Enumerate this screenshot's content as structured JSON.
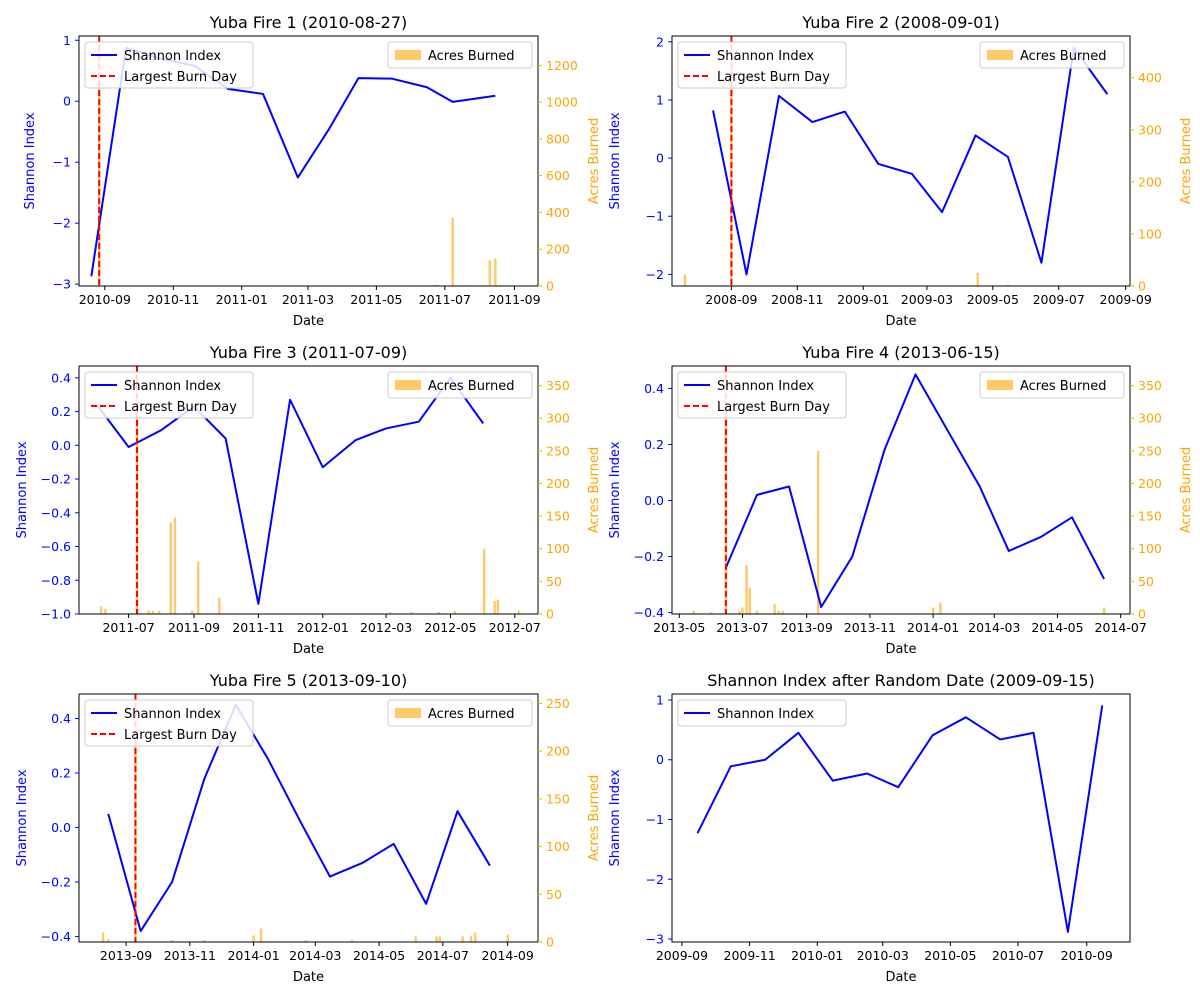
{
  "colors": {
    "shannon": "#0000ff",
    "acres": "#ffa500",
    "burn_day": "#ff0000",
    "axis": "#000000"
  },
  "chart_data": [
    {
      "type": "line+bar",
      "title": "Yuba Fire 1 (2010-08-27)",
      "xlabel": "Date",
      "ylabel": "Shannon Index",
      "y2label": "Acres Burned",
      "xlim": [
        "2010-08-09",
        "2011-09-22"
      ],
      "xticks": [
        "2010-09-01",
        "2010-11-01",
        "2011-01-01",
        "2011-03-01",
        "2011-05-01",
        "2011-07-01",
        "2011-09-01"
      ],
      "xtick_labels": [
        "2010-09",
        "2010-11",
        "2011-01",
        "2011-03",
        "2011-05",
        "2011-07",
        "2011-09"
      ],
      "ylim": [
        -3.03,
        1.07
      ],
      "yticks": [
        -3,
        -2,
        -1,
        0,
        1
      ],
      "y2lim": [
        0,
        1360
      ],
      "y2ticks": [
        0,
        200,
        400,
        600,
        800,
        1000,
        1200
      ],
      "legend": {
        "line_label": "Shannon Index",
        "burn_label": "Largest Burn Day",
        "bar_label": "Acres Burned",
        "line_position": "upper-left",
        "bar_position": "upper-right"
      },
      "burn_day": "2010-08-27",
      "shannon": {
        "x": [
          "2010-08-20",
          "2010-09-20",
          "2010-10-20",
          "2010-11-20",
          "2010-12-20",
          "2011-01-20",
          "2011-02-20",
          "2011-03-20",
          "2011-04-15",
          "2011-05-15",
          "2011-06-15",
          "2011-07-08",
          "2011-08-15"
        ],
        "y": [
          -2.87,
          0.88,
          0.7,
          0.58,
          0.2,
          0.12,
          -1.25,
          -0.45,
          0.38,
          0.37,
          0.23,
          -0.01,
          0.09
        ]
      },
      "acres": {
        "x": [
          "2010-08-27",
          "2011-06-22",
          "2011-06-25",
          "2011-07-08",
          "2011-07-20",
          "2011-08-10",
          "2011-08-15",
          "2011-08-20"
        ],
        "y": [
          1300,
          8,
          6,
          370,
          5,
          140,
          150,
          5
        ]
      }
    },
    {
      "type": "line+bar",
      "title": "Yuba Fire 2 (2008-09-01)",
      "xlabel": "Date",
      "ylabel": "Shannon Index",
      "y2label": "Acres Burned",
      "xlim": [
        "2008-07-08",
        "2009-09-05"
      ],
      "xticks": [
        "2008-09-01",
        "2008-11-01",
        "2009-01-01",
        "2009-03-01",
        "2009-05-01",
        "2009-07-01",
        "2009-09-01"
      ],
      "xtick_labels": [
        "2008-09",
        "2008-11",
        "2009-01",
        "2009-03",
        "2009-05",
        "2009-07",
        "2009-09"
      ],
      "ylim": [
        -2.2,
        2.1
      ],
      "yticks": [
        -2,
        -1,
        0,
        1,
        2
      ],
      "y2lim": [
        0,
        480
      ],
      "y2ticks": [
        0,
        100,
        200,
        300,
        400
      ],
      "legend": {
        "line_label": "Shannon Index",
        "burn_label": "Largest Burn Day",
        "bar_label": "Acres Burned",
        "line_position": "upper-left",
        "bar_position": "upper-right"
      },
      "burn_day": "2008-09-01",
      "shannon": {
        "x": [
          "2008-08-15",
          "2008-09-15",
          "2008-10-15",
          "2008-11-15",
          "2008-12-15",
          "2009-01-15",
          "2009-02-15",
          "2009-03-15",
          "2009-04-15",
          "2009-05-15",
          "2009-06-15",
          "2009-07-15",
          "2009-08-15"
        ],
        "y": [
          0.82,
          -2.0,
          1.07,
          0.62,
          0.8,
          -0.1,
          -0.27,
          -0.93,
          0.39,
          0.02,
          -1.8,
          1.9,
          1.1
        ]
      },
      "acres": {
        "x": [
          "2008-07-20",
          "2008-09-01",
          "2008-11-01",
          "2009-04-17",
          "2009-05-15"
        ],
        "y": [
          22,
          460,
          2,
          25,
          3
        ]
      }
    },
    {
      "type": "line+bar",
      "title": "Yuba Fire 3 (2011-07-09)",
      "xlabel": "Date",
      "ylabel": "Shannon Index",
      "y2label": "Acres Burned",
      "xlim": [
        "2011-05-15",
        "2012-07-23"
      ],
      "xticks": [
        "2011-07-01",
        "2011-09-01",
        "2011-11-01",
        "2012-01-01",
        "2012-03-01",
        "2012-05-01",
        "2012-07-01"
      ],
      "xtick_labels": [
        "2011-07",
        "2011-09",
        "2011-11",
        "2012-01",
        "2012-03",
        "2012-05",
        "2012-07"
      ],
      "ylim": [
        -1.0,
        0.47
      ],
      "yticks": [
        -1.0,
        -0.8,
        -0.6,
        -0.4,
        -0.2,
        0.0,
        0.2,
        0.4
      ],
      "yticklabels": [
        "−1.0",
        "−0.8",
        "−0.6",
        "−0.4",
        "−0.2",
        "0.0",
        "0.2",
        "0.4"
      ],
      "y2lim": [
        0,
        380
      ],
      "y2ticks": [
        0,
        50,
        100,
        150,
        200,
        250,
        300,
        350
      ],
      "legend": {
        "line_label": "Shannon Index",
        "burn_label": "Largest Burn Day",
        "bar_label": "Acres Burned",
        "line_position": "upper-left",
        "bar_position": "upper-right"
      },
      "burn_day": "2011-07-09",
      "shannon": {
        "x": [
          "2011-06-01",
          "2011-07-01",
          "2011-08-01",
          "2011-09-01",
          "2011-10-01",
          "2011-11-01",
          "2011-12-01",
          "2012-01-01",
          "2012-02-01",
          "2012-03-01",
          "2012-04-01",
          "2012-05-01",
          "2012-06-01"
        ],
        "y": [
          0.24,
          -0.01,
          0.09,
          0.23,
          0.04,
          -0.94,
          0.27,
          -0.13,
          0.03,
          0.1,
          0.14,
          0.4,
          0.13
        ]
      },
      "acres": {
        "x": [
          "2011-06-05",
          "2011-06-09",
          "2011-07-09",
          "2011-07-20",
          "2011-07-24",
          "2011-07-30",
          "2011-08-10",
          "2011-08-14",
          "2011-08-30",
          "2011-09-05",
          "2011-09-25",
          "2012-03-05",
          "2012-03-25",
          "2012-04-20",
          "2012-05-05",
          "2012-06-02",
          "2012-06-12",
          "2012-06-15",
          "2012-07-05"
        ],
        "y": [
          12,
          8,
          360,
          5,
          5,
          5,
          140,
          148,
          5,
          80,
          25,
          3,
          3,
          3,
          5,
          100,
          20,
          22,
          5
        ]
      }
    },
    {
      "type": "line+bar",
      "title": "Yuba Fire 4 (2013-06-15)",
      "xlabel": "Date",
      "ylabel": "Shannon Index",
      "y2label": "Acres Burned",
      "xlim": [
        "2013-04-24",
        "2014-07-10"
      ],
      "xticks": [
        "2013-05-01",
        "2013-07-01",
        "2013-09-01",
        "2013-11-01",
        "2014-01-01",
        "2014-03-01",
        "2014-05-01",
        "2014-07-01"
      ],
      "xtick_labels": [
        "2013-05",
        "2013-07",
        "2013-09",
        "2013-11",
        "2014-01",
        "2014-03",
        "2014-05",
        "2014-07"
      ],
      "ylim": [
        -0.405,
        0.48
      ],
      "yticks": [
        -0.4,
        -0.2,
        0.0,
        0.2,
        0.4
      ],
      "yticklabels": [
        "−0.4",
        "−0.2",
        "0.0",
        "0.2",
        "0.4"
      ],
      "y2lim": [
        0,
        380
      ],
      "y2ticks": [
        0,
        50,
        100,
        150,
        200,
        250,
        300,
        350
      ],
      "legend": {
        "line_label": "Shannon Index",
        "burn_label": "Largest Burn Day",
        "bar_label": "Acres Burned",
        "line_position": "upper-left",
        "bar_position": "upper-right"
      },
      "burn_day": "2013-06-15",
      "shannon": {
        "x": [
          "2013-06-15",
          "2013-07-15",
          "2013-08-15",
          "2013-09-15",
          "2013-10-15",
          "2013-11-15",
          "2013-12-15",
          "2014-01-15",
          "2014-02-15",
          "2014-03-15",
          "2014-04-15",
          "2014-05-15",
          "2014-06-15"
        ],
        "y": [
          -0.24,
          0.02,
          0.05,
          -0.38,
          -0.2,
          0.18,
          0.45,
          0.25,
          0.05,
          -0.18,
          -0.13,
          -0.06,
          -0.28
        ]
      },
      "acres": {
        "x": [
          "2013-05-15",
          "2013-06-01",
          "2013-06-15",
          "2013-06-28",
          "2013-07-01",
          "2013-07-05",
          "2013-07-08",
          "2013-07-15",
          "2013-08-01",
          "2013-08-05",
          "2013-08-09",
          "2013-09-12",
          "2014-01-01",
          "2014-01-08",
          "2014-06-15"
        ],
        "y": [
          5,
          3,
          370,
          5,
          10,
          75,
          40,
          5,
          15,
          5,
          5,
          250,
          10,
          18,
          10
        ]
      }
    },
    {
      "type": "line+bar",
      "title": "Yuba Fire 5 (2013-09-10)",
      "xlabel": "Date",
      "ylabel": "Shannon Index",
      "y2label": "Acres Burned",
      "xlim": [
        "2013-07-18",
        "2014-09-30"
      ],
      "xticks": [
        "2013-09-01",
        "2013-11-01",
        "2014-01-01",
        "2014-03-01",
        "2014-05-01",
        "2014-07-01",
        "2014-09-01"
      ],
      "xtick_labels": [
        "2013-09",
        "2013-11",
        "2014-01",
        "2014-03",
        "2014-05",
        "2014-07",
        "2014-09"
      ],
      "ylim": [
        -0.42,
        0.49
      ],
      "yticks": [
        -0.4,
        -0.2,
        0.0,
        0.2,
        0.4
      ],
      "yticklabels": [
        "−0.4",
        "−0.2",
        "0.0",
        "0.2",
        "0.4"
      ],
      "y2lim": [
        0,
        260
      ],
      "y2ticks": [
        0,
        50,
        100,
        150,
        200,
        250
      ],
      "legend": {
        "line_label": "Shannon Index",
        "burn_label": "Largest Burn Day",
        "bar_label": "Acres Burned",
        "line_position": "upper-left",
        "bar_position": "upper-right"
      },
      "burn_day": "2013-09-10",
      "shannon": {
        "x": [
          "2013-08-15",
          "2013-09-15",
          "2013-10-15",
          "2013-11-15",
          "2013-12-15",
          "2014-01-15",
          "2014-02-15",
          "2014-03-15",
          "2014-04-15",
          "2014-05-15",
          "2014-06-15",
          "2014-07-15",
          "2014-08-15"
        ],
        "y": [
          0.05,
          -0.38,
          -0.2,
          0.18,
          0.45,
          0.25,
          0.02,
          -0.18,
          -0.13,
          -0.06,
          -0.28,
          0.06,
          -0.14
        ]
      },
      "acres": {
        "x": [
          "2013-08-10",
          "2013-08-15",
          "2013-09-10",
          "2013-10-15",
          "2013-11-15",
          "2014-01-01",
          "2014-01-08",
          "2014-02-20",
          "2014-04-05",
          "2014-06-05",
          "2014-06-25",
          "2014-06-28",
          "2014-07-20",
          "2014-07-28",
          "2014-08-01",
          "2014-09-01"
        ],
        "y": [
          10,
          3,
          250,
          2,
          2,
          7,
          14,
          2,
          2,
          6,
          6,
          6,
          6,
          6,
          10,
          8
        ]
      }
    },
    {
      "type": "line",
      "title": "Shannon Index after Random Date (2009-09-15)",
      "xlabel": "Date",
      "ylabel": "Shannon Index",
      "xlim": [
        "2009-08-23",
        "2010-10-10"
      ],
      "xticks": [
        "2009-09-01",
        "2009-11-01",
        "2010-01-01",
        "2010-03-01",
        "2010-05-01",
        "2010-07-01",
        "2010-09-01"
      ],
      "xtick_labels": [
        "2009-09",
        "2009-11",
        "2010-01",
        "2010-03",
        "2010-05",
        "2010-07",
        "2010-09"
      ],
      "ylim": [
        -3.05,
        1.1
      ],
      "yticks": [
        -3,
        -2,
        -1,
        0,
        1
      ],
      "legend": {
        "line_label": "Shannon Index",
        "line_position": "upper-left"
      },
      "shannon": {
        "x": [
          "2009-09-15",
          "2009-10-15",
          "2009-11-15",
          "2009-12-15",
          "2010-01-15",
          "2010-02-15",
          "2010-03-15",
          "2010-04-15",
          "2010-05-15",
          "2010-06-15",
          "2010-07-15",
          "2010-08-15",
          "2010-09-15"
        ],
        "y": [
          -1.23,
          -0.11,
          0.0,
          0.45,
          -0.35,
          -0.23,
          -0.46,
          0.41,
          0.71,
          0.34,
          0.45,
          -2.88,
          0.91
        ]
      }
    }
  ]
}
